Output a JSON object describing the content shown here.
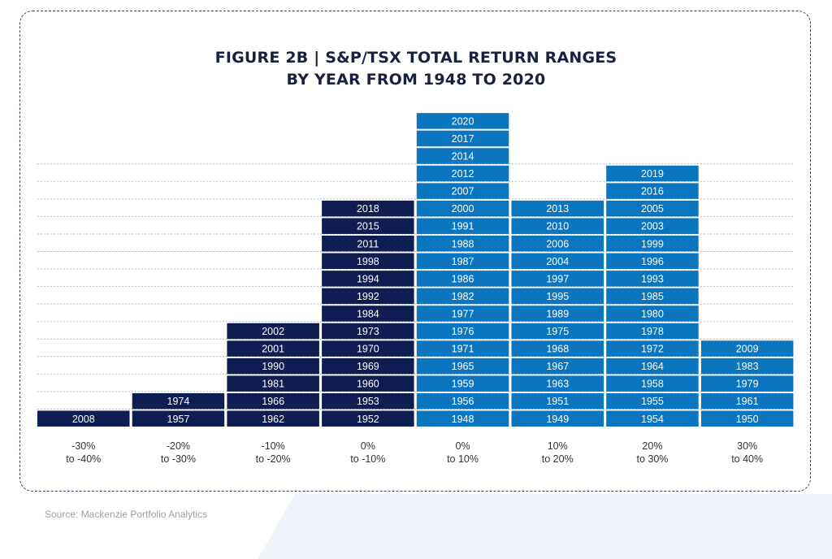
{
  "title": {
    "line1": "FIGURE 2B | S&P/TSX TOTAL RETURN RANGES",
    "line2": "BY YEAR FROM 1948 TO 2020"
  },
  "source": "Source: Mackenzie Portfolio Analytics",
  "colors": {
    "negative": "#0f1e52",
    "positive": "#0b75c0",
    "text": "#1a2041",
    "grid": "#9aa0b0",
    "label": "#333333"
  },
  "chart_data": {
    "type": "bar",
    "subtype": "stacked histogram of year labels",
    "title": "FIGURE 2B | S&P/TSX TOTAL RETURN RANGES BY YEAR FROM 1948 TO 2020",
    "xlabel": "",
    "ylabel": "",
    "grid": "dotted horizontal lines",
    "categories": [
      [
        "-30%",
        "to -40%"
      ],
      [
        "-20%",
        "to -30%"
      ],
      [
        "-10%",
        "to -20%"
      ],
      [
        "0%",
        "to -10%"
      ],
      [
        "0%",
        "to 10%"
      ],
      [
        "10%",
        "to 20%"
      ],
      [
        "20%",
        "to 30%"
      ],
      [
        "30%",
        "to 40%"
      ]
    ],
    "bins": [
      {
        "sign": "negative",
        "years": [
          "2008"
        ]
      },
      {
        "sign": "negative",
        "years": [
          "1957",
          "1974"
        ]
      },
      {
        "sign": "negative",
        "years": [
          "1962",
          "1966",
          "1981",
          "1990",
          "2001",
          "2002"
        ]
      },
      {
        "sign": "negative",
        "years": [
          "1952",
          "1953",
          "1960",
          "1969",
          "1970",
          "1973",
          "1984",
          "1992",
          "1994",
          "1998",
          "2011",
          "2015",
          "2018"
        ]
      },
      {
        "sign": "positive",
        "years": [
          "1948",
          "1956",
          "1959",
          "1965",
          "1971",
          "1976",
          "1977",
          "1982",
          "1986",
          "1987",
          "1988",
          "1991",
          "2000",
          "2007",
          "2012",
          "2014",
          "2017",
          "2020"
        ]
      },
      {
        "sign": "positive",
        "years": [
          "1949",
          "1951",
          "1963",
          "1967",
          "1968",
          "1975",
          "1989",
          "1995",
          "1997",
          "2004",
          "2006",
          "2010",
          "2013"
        ]
      },
      {
        "sign": "positive",
        "years": [
          "1954",
          "1955",
          "1958",
          "1964",
          "1972",
          "1978",
          "1980",
          "1985",
          "1993",
          "1996",
          "1999",
          "2003",
          "2005",
          "2016",
          "2019"
        ]
      },
      {
        "sign": "positive",
        "years": [
          "1950",
          "1961",
          "1979",
          "1983",
          "2009"
        ]
      }
    ],
    "values": [
      1,
      2,
      6,
      13,
      18,
      13,
      15,
      5
    ]
  }
}
